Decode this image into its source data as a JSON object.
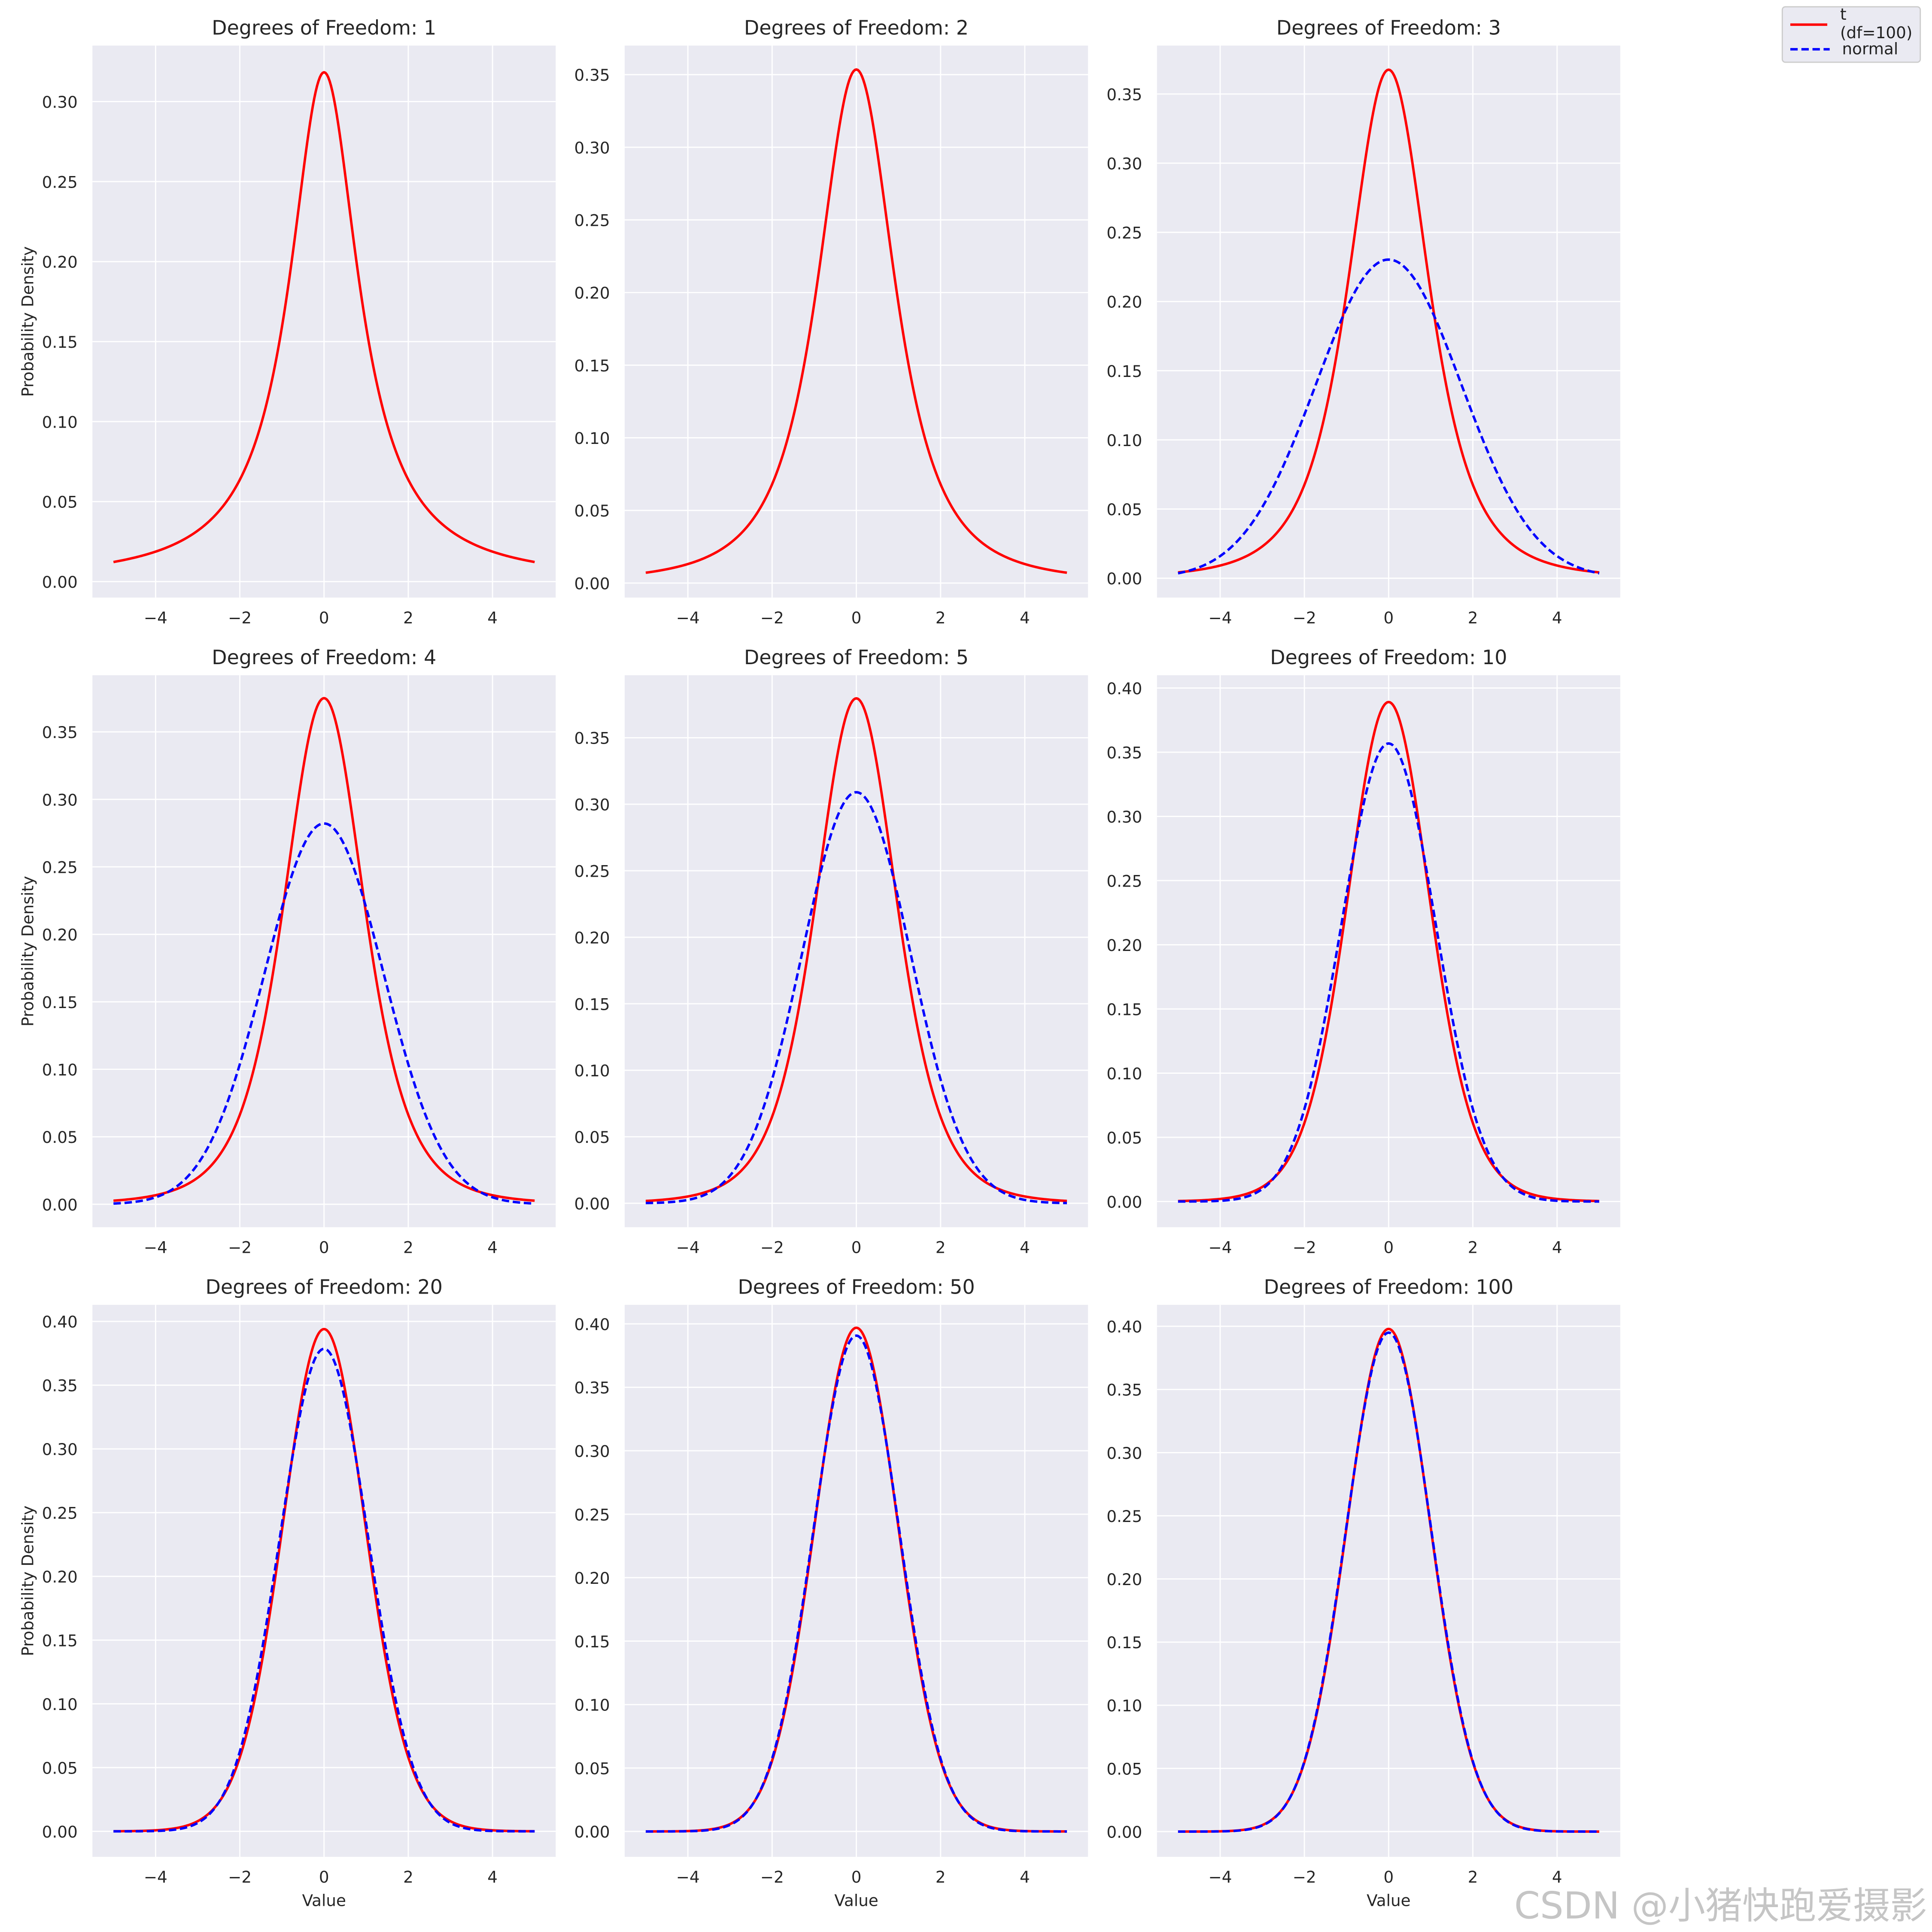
{
  "figure": {
    "ylabel": "Probability Density",
    "xlabel": "Value",
    "watermark": "CSDN @小猪快跑爱摄影"
  },
  "legend": {
    "entries": [
      {
        "label": "t (df=100)",
        "color": "#ff0000",
        "style": "solid"
      },
      {
        "label": "normal",
        "color": "#0000ff",
        "style": "dashed"
      }
    ]
  },
  "colors": {
    "axes_bg": "#eaeaf2",
    "grid": "#ffffff",
    "t_curve": "#ff0000",
    "normal_curve": "#0000ff"
  },
  "chart_data": [
    {
      "type": "line",
      "title": "Degrees of Freedom: 1",
      "df": 1,
      "normal_scale": null,
      "xlim": [
        -5.5,
        5.5
      ],
      "ylim": [
        -0.01,
        0.335
      ],
      "x_range": [
        -5,
        5
      ],
      "xticks": [
        -4,
        -2,
        0,
        2,
        4
      ],
      "xtick_labels": [
        "−4",
        "−2",
        "0",
        "2",
        "4"
      ],
      "yticks": [
        0,
        0.05,
        0.1,
        0.15,
        0.2,
        0.25,
        0.3
      ],
      "ytick_labels": [
        "0.00",
        "0.05",
        "0.10",
        "0.15",
        "0.20",
        "0.25",
        "0.30"
      ],
      "series": [
        {
          "name": "t",
          "style": "solid",
          "peak": 0.318
        }
      ]
    },
    {
      "type": "line",
      "title": "Degrees of Freedom: 2",
      "df": 2,
      "normal_scale": null,
      "xlim": [
        -5.5,
        5.5
      ],
      "ylim": [
        -0.01,
        0.37
      ],
      "x_range": [
        -5,
        5
      ],
      "xticks": [
        -4,
        -2,
        0,
        2,
        4
      ],
      "xtick_labels": [
        "−4",
        "−2",
        "0",
        "2",
        "4"
      ],
      "yticks": [
        0,
        0.05,
        0.1,
        0.15,
        0.2,
        0.25,
        0.3,
        0.35
      ],
      "ytick_labels": [
        "0.00",
        "0.05",
        "0.10",
        "0.15",
        "0.20",
        "0.25",
        "0.30",
        "0.35"
      ],
      "series": [
        {
          "name": "t",
          "style": "solid",
          "peak": 0.354
        }
      ]
    },
    {
      "type": "line",
      "title": "Degrees of Freedom: 3",
      "df": 3,
      "normal_scale": 1.732,
      "xlim": [
        -5.5,
        5.5
      ],
      "ylim": [
        -0.014,
        0.385
      ],
      "x_range": [
        -5,
        5
      ],
      "xticks": [
        -4,
        -2,
        0,
        2,
        4
      ],
      "xtick_labels": [
        "−4",
        "−2",
        "0",
        "2",
        "4"
      ],
      "yticks": [
        0,
        0.05,
        0.1,
        0.15,
        0.2,
        0.25,
        0.3,
        0.35
      ],
      "ytick_labels": [
        "0.00",
        "0.05",
        "0.10",
        "0.15",
        "0.20",
        "0.25",
        "0.30",
        "0.35"
      ],
      "series": [
        {
          "name": "t",
          "style": "solid",
          "peak": 0.368
        },
        {
          "name": "normal",
          "style": "dashed",
          "peak": 0.23
        }
      ]
    },
    {
      "type": "line",
      "title": "Degrees of Freedom: 4",
      "df": 4,
      "normal_scale": 1.414,
      "xlim": [
        -5.5,
        5.5
      ],
      "ylim": [
        -0.017,
        0.392
      ],
      "x_range": [
        -5,
        5
      ],
      "xticks": [
        -4,
        -2,
        0,
        2,
        4
      ],
      "xtick_labels": [
        "−4",
        "−2",
        "0",
        "2",
        "4"
      ],
      "yticks": [
        0,
        0.05,
        0.1,
        0.15,
        0.2,
        0.25,
        0.3,
        0.35
      ],
      "ytick_labels": [
        "0.00",
        "0.05",
        "0.10",
        "0.15",
        "0.20",
        "0.25",
        "0.30",
        "0.35"
      ],
      "series": [
        {
          "name": "t",
          "style": "solid",
          "peak": 0.375
        },
        {
          "name": "normal",
          "style": "dashed",
          "peak": 0.282
        }
      ]
    },
    {
      "type": "line",
      "title": "Degrees of Freedom: 5",
      "df": 5,
      "normal_scale": 1.291,
      "xlim": [
        -5.5,
        5.5
      ],
      "ylim": [
        -0.018,
        0.397
      ],
      "x_range": [
        -5,
        5
      ],
      "xticks": [
        -4,
        -2,
        0,
        2,
        4
      ],
      "xtick_labels": [
        "−4",
        "−2",
        "0",
        "2",
        "4"
      ],
      "yticks": [
        0,
        0.05,
        0.1,
        0.15,
        0.2,
        0.25,
        0.3,
        0.35
      ],
      "ytick_labels": [
        "0.00",
        "0.05",
        "0.10",
        "0.15",
        "0.20",
        "0.25",
        "0.30",
        "0.35"
      ],
      "series": [
        {
          "name": "t",
          "style": "solid",
          "peak": 0.38
        },
        {
          "name": "normal",
          "style": "dashed",
          "peak": 0.309
        }
      ]
    },
    {
      "type": "line",
      "title": "Degrees of Freedom: 10",
      "df": 10,
      "normal_scale": 1.118,
      "xlim": [
        -5.5,
        5.5
      ],
      "ylim": [
        -0.02,
        0.41
      ],
      "x_range": [
        -5,
        5
      ],
      "xticks": [
        -4,
        -2,
        0,
        2,
        4
      ],
      "xtick_labels": [
        "−4",
        "−2",
        "0",
        "2",
        "4"
      ],
      "yticks": [
        0,
        0.05,
        0.1,
        0.15,
        0.2,
        0.25,
        0.3,
        0.35,
        0.4
      ],
      "ytick_labels": [
        "0.00",
        "0.05",
        "0.10",
        "0.15",
        "0.20",
        "0.25",
        "0.30",
        "0.35",
        "0.40"
      ],
      "series": [
        {
          "name": "t",
          "style": "solid",
          "peak": 0.389
        },
        {
          "name": "normal",
          "style": "dashed",
          "peak": 0.357
        }
      ]
    },
    {
      "type": "line",
      "title": "Degrees of Freedom: 20",
      "df": 20,
      "normal_scale": 1.054,
      "xlim": [
        -5.5,
        5.5
      ],
      "ylim": [
        -0.02,
        0.413
      ],
      "x_range": [
        -5,
        5
      ],
      "xticks": [
        -4,
        -2,
        0,
        2,
        4
      ],
      "xtick_labels": [
        "−4",
        "−2",
        "0",
        "2",
        "4"
      ],
      "yticks": [
        0,
        0.05,
        0.1,
        0.15,
        0.2,
        0.25,
        0.3,
        0.35,
        0.4
      ],
      "ytick_labels": [
        "0.00",
        "0.05",
        "0.10",
        "0.15",
        "0.20",
        "0.25",
        "0.30",
        "0.35",
        "0.40"
      ],
      "series": [
        {
          "name": "t",
          "style": "solid",
          "peak": 0.394
        },
        {
          "name": "normal",
          "style": "dashed",
          "peak": 0.378
        }
      ]
    },
    {
      "type": "line",
      "title": "Degrees of Freedom: 50",
      "df": 50,
      "normal_scale": 1.021,
      "xlim": [
        -5.5,
        5.5
      ],
      "ylim": [
        -0.02,
        0.415
      ],
      "x_range": [
        -5,
        5
      ],
      "xticks": [
        -4,
        -2,
        0,
        2,
        4
      ],
      "xtick_labels": [
        "−4",
        "−2",
        "0",
        "2",
        "4"
      ],
      "yticks": [
        0,
        0.05,
        0.1,
        0.15,
        0.2,
        0.25,
        0.3,
        0.35,
        0.4
      ],
      "ytick_labels": [
        "0.00",
        "0.05",
        "0.10",
        "0.15",
        "0.20",
        "0.25",
        "0.30",
        "0.35",
        "0.40"
      ],
      "series": [
        {
          "name": "t",
          "style": "solid",
          "peak": 0.397
        },
        {
          "name": "normal",
          "style": "dashed",
          "peak": 0.391
        }
      ]
    },
    {
      "type": "line",
      "title": "Degrees of Freedom: 100",
      "df": 100,
      "normal_scale": 1.01,
      "xlim": [
        -5.5,
        5.5
      ],
      "ylim": [
        -0.02,
        0.417
      ],
      "x_range": [
        -5,
        5
      ],
      "xticks": [
        -4,
        -2,
        0,
        2,
        4
      ],
      "xtick_labels": [
        "−4",
        "−2",
        "0",
        "2",
        "4"
      ],
      "yticks": [
        0,
        0.05,
        0.1,
        0.15,
        0.2,
        0.25,
        0.3,
        0.35,
        0.4
      ],
      "ytick_labels": [
        "0.00",
        "0.05",
        "0.10",
        "0.15",
        "0.20",
        "0.25",
        "0.30",
        "0.35",
        "0.40"
      ],
      "series": [
        {
          "name": "t",
          "style": "solid",
          "peak": 0.398
        },
        {
          "name": "normal",
          "style": "dashed",
          "peak": 0.395
        }
      ]
    }
  ]
}
